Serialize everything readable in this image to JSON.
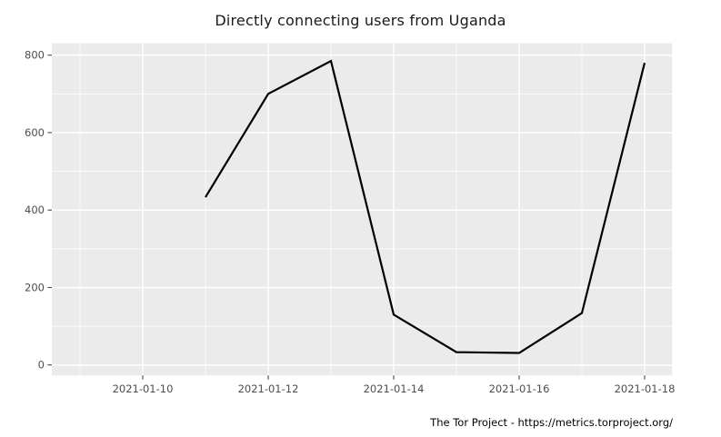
{
  "title": "Directly connecting users from Uganda",
  "footer": "The Tor Project - https://metrics.torproject.org/",
  "colors": {
    "background": "#ffffff",
    "panel_bg": "#ebebeb",
    "grid_major": "#ffffff",
    "grid_minor": "#ffffff",
    "line": "#000000",
    "axis_text": "#4d4d4d",
    "title_text": "#1a1a1a",
    "tick_mark": "#333333",
    "footer_text": "#000000"
  },
  "chart_data": {
    "type": "line",
    "title": "Directly connecting users from Uganda",
    "xlabel": "",
    "ylabel": "",
    "x": [
      "2021-01-11",
      "2021-01-12",
      "2021-01-13",
      "2021-01-14",
      "2021-01-15",
      "2021-01-16",
      "2021-01-17",
      "2021-01-18"
    ],
    "values": [
      433,
      700,
      785,
      130,
      33,
      31,
      134,
      780
    ],
    "x_tick_labels": [
      "2021-01-10",
      "2021-01-12",
      "2021-01-14",
      "2021-01-16",
      "2021-01-18"
    ],
    "x_major_days": [
      10,
      12,
      14,
      16,
      18
    ],
    "x_minor_days": [
      9,
      11,
      13,
      15,
      17
    ],
    "y_ticks": [
      0,
      200,
      400,
      600,
      800
    ],
    "y_tick_labels": [
      "0",
      "200",
      "400",
      "600",
      "800"
    ],
    "y_minor_ticks": [
      100,
      300,
      500,
      700
    ],
    "ylim": [
      0,
      800
    ],
    "grid": true,
    "legend": "none",
    "line_width": 2.2
  }
}
